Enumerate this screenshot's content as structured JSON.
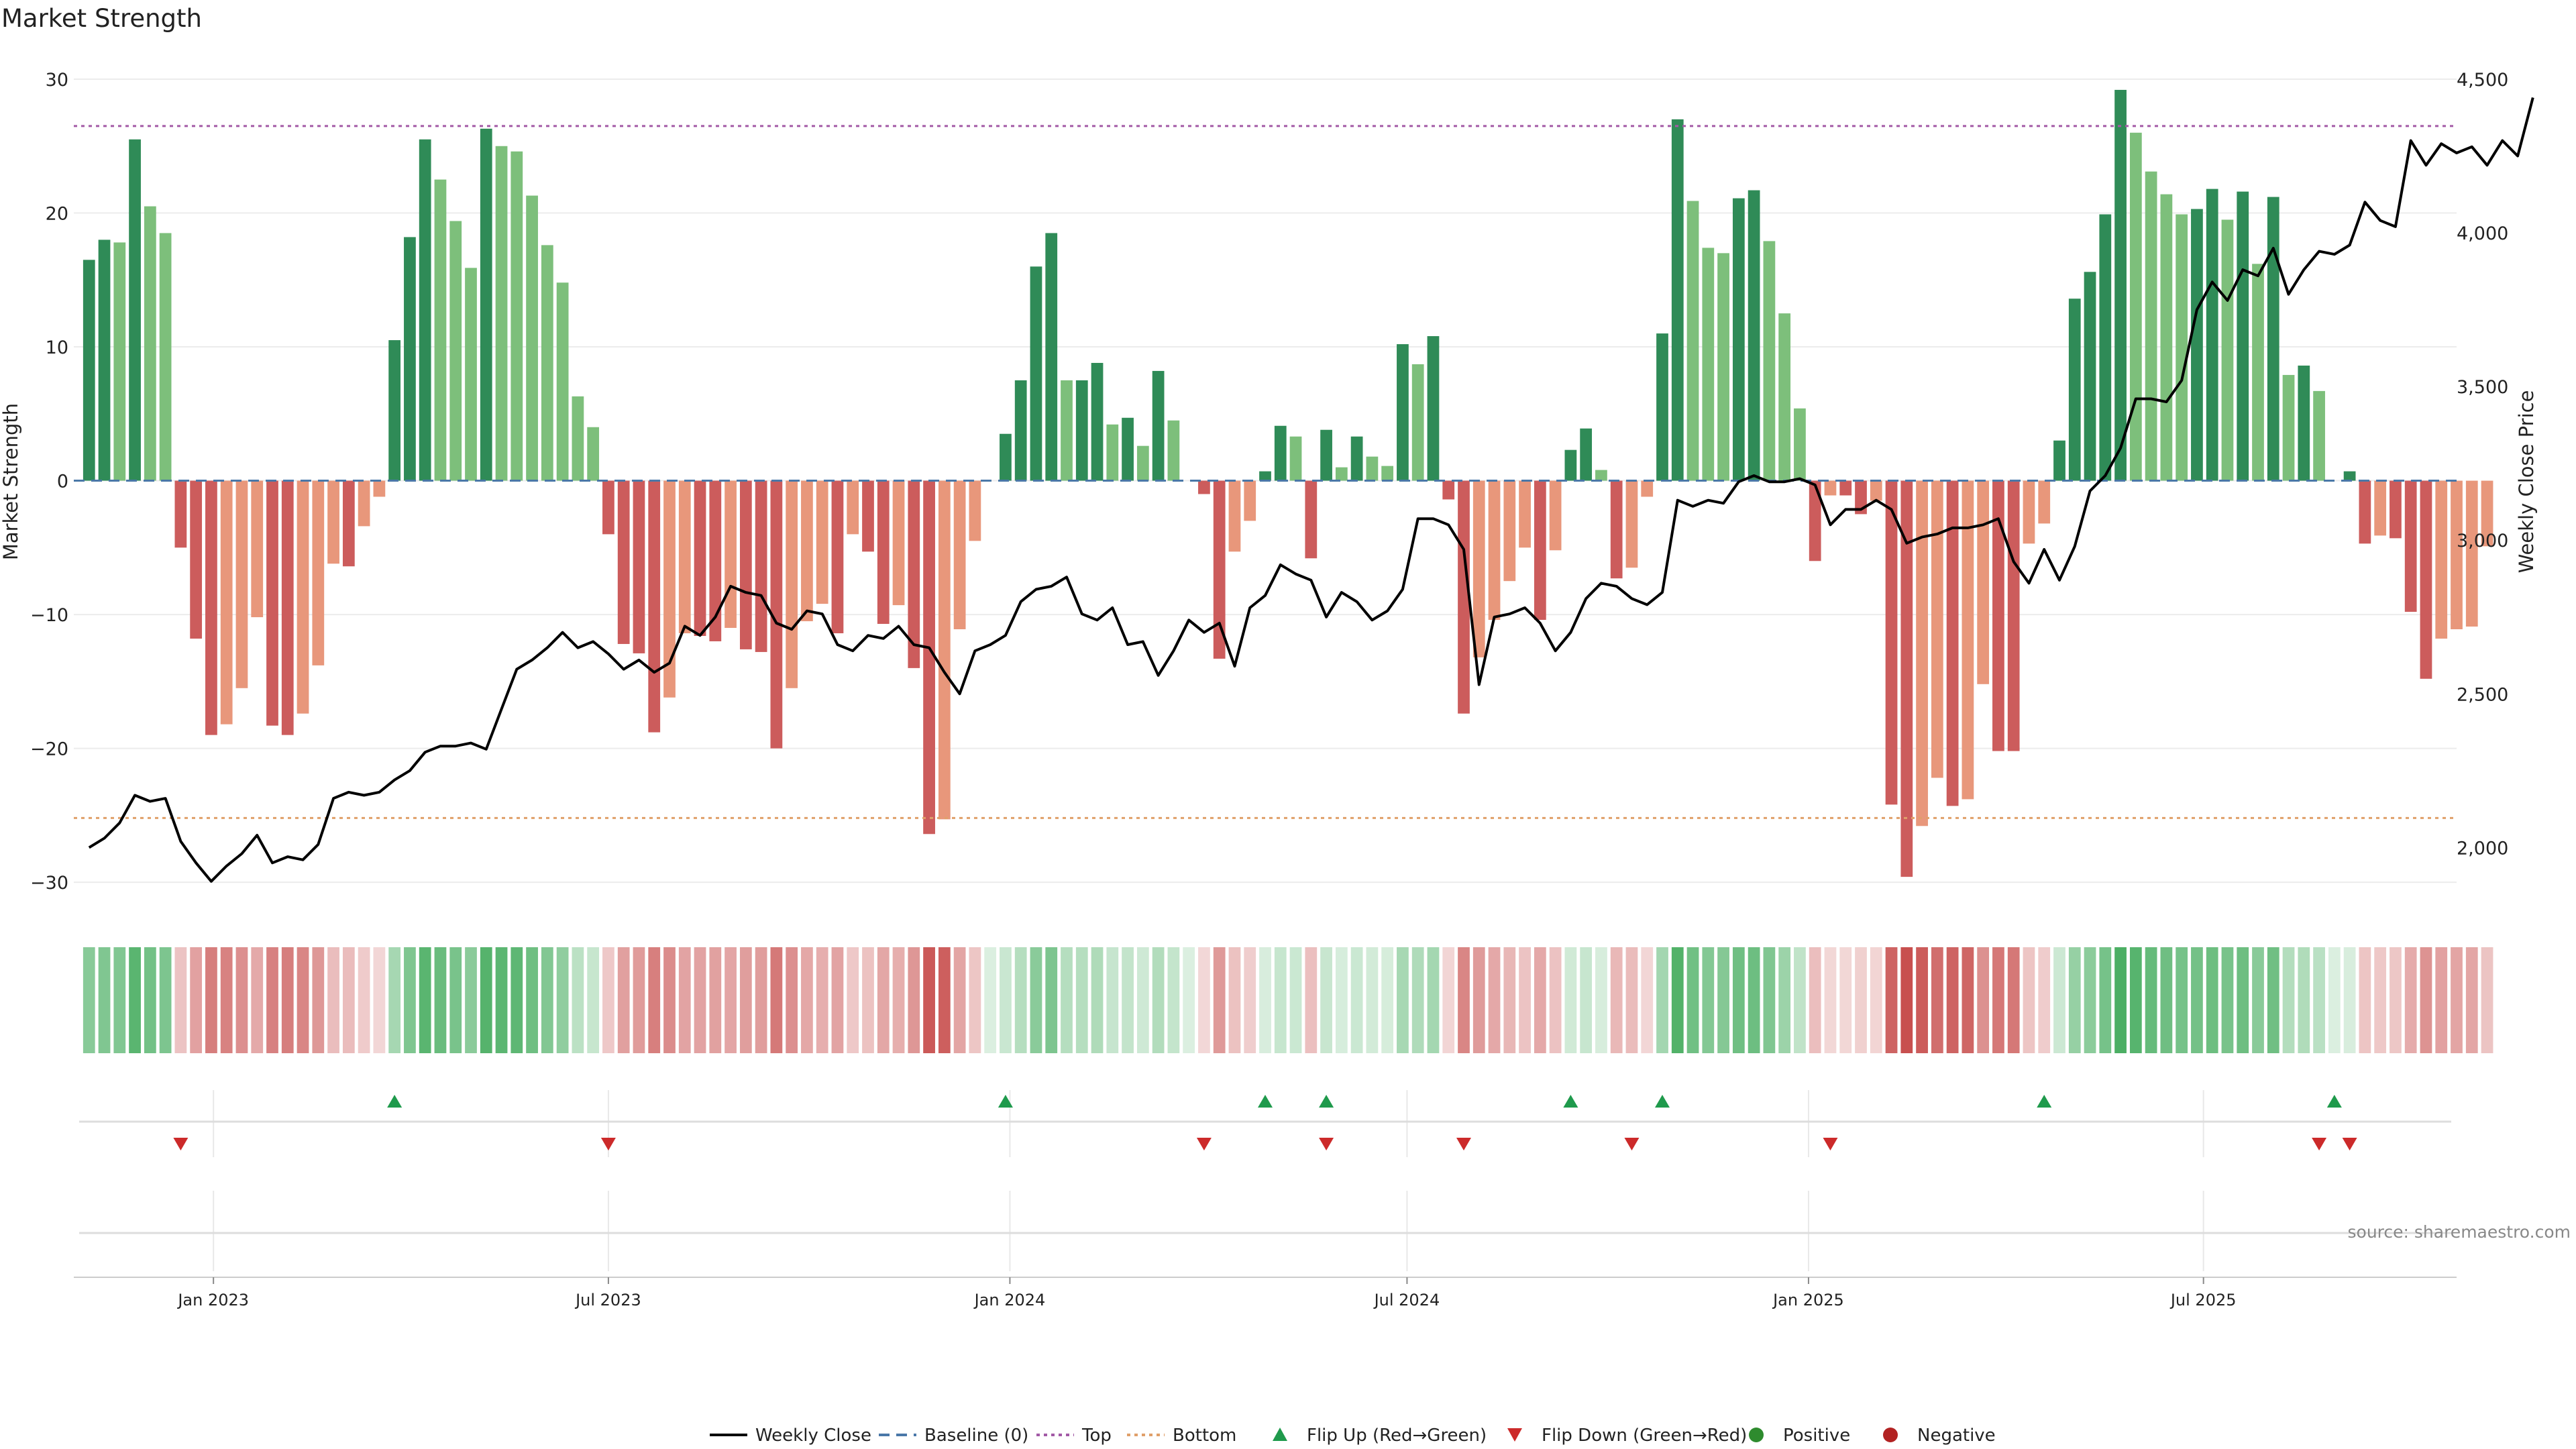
{
  "chart_data": {
    "type": "bar",
    "title": "Market Strength",
    "ylabel_left": "Market Strength",
    "ylabel_right": "Weekly Close Price",
    "ylim_left": [
      -32,
      30
    ],
    "yticks_left": [
      30,
      20,
      10,
      0,
      -10,
      -20,
      -30
    ],
    "ytick_labels_left": [
      "30",
      "20",
      "10",
      "0",
      "−10",
      "−20",
      "−30"
    ],
    "ylim_right": [
      1800,
      4500
    ],
    "yticks_right": [
      4500,
      4000,
      3500,
      3000,
      2500,
      2000
    ],
    "ytick_labels_right": [
      "4,500",
      "4,000",
      "3,500",
      "3,000",
      "2,500",
      "2,000"
    ],
    "x_range": [
      "2022-10-29",
      "2025-10-25"
    ],
    "x_ticks": [
      {
        "date": "2023-01-01",
        "label": "Jan 2023"
      },
      {
        "date": "2023-07-01",
        "label": "Jul 2023"
      },
      {
        "date": "2024-01-01",
        "label": "Jan 2024"
      },
      {
        "date": "2024-07-01",
        "label": "Jul 2024"
      },
      {
        "date": "2025-01-01",
        "label": "Jan 2025"
      },
      {
        "date": "2025-07-01",
        "label": "Jul 2025"
      }
    ],
    "first_week": "2022-11-05",
    "top_level": 26.5,
    "bottom_level": -25.2,
    "baseline": 0,
    "strength": [
      16.5,
      18,
      17.8,
      25.5,
      20.5,
      18.5,
      -5,
      -11.8,
      -19,
      -18.2,
      -15.5,
      -10.2,
      -18.3,
      -19,
      -17.4,
      -13.8,
      -6.2,
      -6.4,
      -3.4,
      -1.2,
      10.5,
      18.2,
      25.5,
      22.5,
      19.4,
      15.9,
      26.3,
      25,
      24.6,
      21.3,
      17.6,
      14.8,
      6.3,
      4,
      -4,
      -12.2,
      -12.9,
      -18.8,
      -16.2,
      -11.4,
      -11.6,
      -12,
      -11,
      -12.6,
      -12.8,
      -20,
      -15.5,
      -10.5,
      -9.2,
      -11.4,
      -4,
      -5.3,
      -10.7,
      -9.3,
      -14,
      -26.4,
      -25.3,
      -11.1,
      -4.5,
      0,
      3.5,
      7.5,
      16,
      18.5,
      7.5,
      7.5,
      8.8,
      4.2,
      4.7,
      2.6,
      8.2,
      4.5,
      0,
      -1,
      -13.3,
      -5.3,
      -3,
      0.7,
      4.1,
      3.3,
      -5.8,
      3.8,
      1,
      3.3,
      1.8,
      1.1,
      10.2,
      8.7,
      10.8,
      -1.4,
      -17.4,
      -13.2,
      -10.4,
      -7.5,
      -5,
      -10.4,
      -5.2,
      2.3,
      3.9,
      0.8,
      -7.3,
      -6.5,
      -1.2,
      11,
      27,
      20.9,
      17.4,
      17,
      21.1,
      21.7,
      17.9,
      12.5,
      5.4,
      -6,
      -1.1,
      -1.1,
      -2.5,
      -1.5,
      -24.2,
      -29.6,
      -25.8,
      -22.2,
      -24.3,
      -23.8,
      -15.2,
      -20.2,
      -20.2,
      -4.7,
      -3.2,
      3,
      13.6,
      15.6,
      19.9,
      29.2,
      26,
      23.1,
      21.4,
      19.9,
      20.3,
      21.8,
      19.5,
      21.6,
      16.2,
      21.2,
      7.9,
      8.6,
      6.7,
      0,
      0.7,
      -4.7,
      -4.1,
      -4.3,
      -9.8,
      -14.8,
      -11.8,
      -11.1,
      -10.9,
      -4.9
    ],
    "weekly_close": [
      2000,
      2030,
      2080,
      2170,
      2150,
      2160,
      2020,
      1950,
      1890,
      1940,
      1980,
      2040,
      1950,
      1970,
      1960,
      2010,
      2160,
      2180,
      2170,
      2180,
      2220,
      2250,
      2310,
      2330,
      2330,
      2340,
      2320,
      2450,
      2580,
      2610,
      2650,
      2700,
      2650,
      2670,
      2630,
      2580,
      2610,
      2570,
      2600,
      2720,
      2690,
      2750,
      2850,
      2830,
      2820,
      2730,
      2710,
      2770,
      2760,
      2660,
      2640,
      2690,
      2680,
      2720,
      2660,
      2650,
      2570,
      2500,
      2640,
      2660,
      2690,
      2800,
      2840,
      2850,
      2880,
      2760,
      2740,
      2780,
      2660,
      2670,
      2560,
      2640,
      2740,
      2700,
      2730,
      2590,
      2780,
      2820,
      2920,
      2890,
      2870,
      2750,
      2830,
      2800,
      2740,
      2770,
      2840,
      3070,
      3070,
      3050,
      2970,
      2530,
      2750,
      2760,
      2780,
      2730,
      2640,
      2700,
      2810,
      2860,
      2850,
      2810,
      2790,
      2830,
      3130,
      3110,
      3130,
      3120,
      3190,
      3210,
      3190,
      3190,
      3200,
      3180,
      3050,
      3100,
      3100,
      3130,
      3100,
      2990,
      3010,
      3020,
      3040,
      3040,
      3050,
      3070,
      2930,
      2860,
      2970,
      2870,
      2980,
      3160,
      3210,
      3300,
      3460,
      3460,
      3450,
      3520,
      3750,
      3840,
      3780,
      3880,
      3860,
      3950,
      3800,
      3880,
      3940,
      3930,
      3960,
      4100,
      4040,
      4020,
      4300,
      4220,
      4290,
      4260,
      4280,
      4220,
      4300,
      4250,
      4440
    ],
    "flip_up_weeks": [
      20,
      60,
      77,
      81,
      97,
      103,
      128,
      147
    ],
    "flip_down_weeks": [
      6,
      34,
      73,
      81,
      90,
      101,
      114,
      146,
      148
    ],
    "legend": [
      {
        "name": "Weekly Close",
        "kind": "line",
        "color": "#000000"
      },
      {
        "name": "Baseline (0)",
        "kind": "dashed",
        "color": "#4a78a8"
      },
      {
        "name": "Top",
        "kind": "dotted",
        "color": "#a35aa6"
      },
      {
        "name": "Bottom",
        "kind": "dotted",
        "color": "#e0a06a"
      },
      {
        "name": "Flip Up (Red→Green)",
        "kind": "triangle-up",
        "color": "#1f9a4c"
      },
      {
        "name": "Flip Down (Green→Red)",
        "kind": "triangle-down",
        "color": "#cc2a2a"
      },
      {
        "name": "Positive",
        "kind": "dot",
        "color": "#2e8b2e"
      },
      {
        "name": "Negative",
        "kind": "dot",
        "color": "#b22222"
      }
    ],
    "legend_position": "bottom-center",
    "source": "source: sharemaestro.com",
    "colors": {
      "strong_positive": "#2f8b57",
      "weak_positive": "#7dbf7b",
      "strong_negative": "#cc5c5c",
      "weak_negative": "#e8977b",
      "heat_green": "#4caf64",
      "heat_red": "#c8504f",
      "top_line": "#a35aa6",
      "bottom_line": "#e0a06a",
      "baseline": "#4a78a8"
    }
  }
}
